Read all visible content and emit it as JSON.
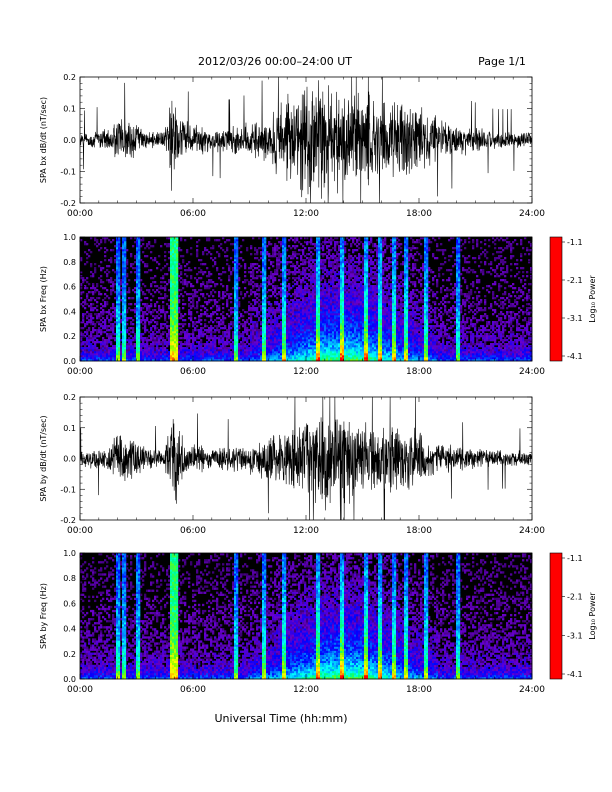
{
  "header": {
    "title": "2012/03/26  00:00–24:00 UT",
    "page": "Page 1/1"
  },
  "xlabel": "Universal Time (hh:mm)",
  "colorbar": {
    "label": "Log₁₀ Power",
    "tick_labels": [
      "-1.1",
      "-2.1",
      "-3.1",
      "-4.1"
    ],
    "colors": [
      "#ff0000",
      "#ffa500",
      "#ffff00",
      "#7cfc00",
      "#00ff80",
      "#00ffff",
      "#0080ff",
      "#0000ff",
      "#6a00cc",
      "#000000"
    ]
  },
  "chart_data": [
    {
      "type": "line",
      "ylabel": "SPA bx dB/dt (nT/sec)",
      "xlim": [
        0,
        24
      ],
      "ylim": [
        -0.2,
        0.2
      ],
      "x_tick_labels": [
        "00:00",
        "06:00",
        "12:00",
        "18:00",
        "24:00"
      ],
      "y_tick_labels": [
        "0.2",
        "0.1",
        "0.0",
        "-0.1",
        "-0.2"
      ],
      "envelope": {
        "hours": [
          0,
          1.5,
          2.2,
          3.5,
          4.5,
          4.9,
          5.5,
          7,
          9,
          10.5,
          12,
          13,
          14.5,
          16,
          17.5,
          19,
          20.5,
          22,
          24
        ],
        "amplitude": [
          0.025,
          0.04,
          0.09,
          0.03,
          0.03,
          0.2,
          0.07,
          0.04,
          0.06,
          0.12,
          0.2,
          0.2,
          0.18,
          0.15,
          0.14,
          0.08,
          0.05,
          0.03,
          0.03
        ]
      }
    },
    {
      "type": "heatmap",
      "ylabel": "SPA bx Freq (Hz)",
      "xlim": [
        0,
        24
      ],
      "ylim": [
        0,
        1
      ],
      "x_tick_labels": [
        "00:00",
        "06:00",
        "12:00",
        "18:00",
        "24:00"
      ],
      "y_tick_labels": [
        "1.0",
        "0.8",
        "0.6",
        "0.4",
        "0.2",
        "0.0"
      ],
      "zlim": [
        -4.1,
        -1.1
      ],
      "zlabel": "Log₁₀ Power"
    },
    {
      "type": "line",
      "ylabel": "SPA by dB/dt (nT/sec)",
      "xlim": [
        0,
        24
      ],
      "ylim": [
        -0.2,
        0.2
      ],
      "x_tick_labels": [
        "00:00",
        "06:00",
        "12:00",
        "18:00",
        "24:00"
      ],
      "y_tick_labels": [
        "0.2",
        "0.1",
        "0.0",
        "-0.1",
        "-0.2"
      ],
      "envelope": {
        "hours": [
          0,
          1.5,
          2.2,
          3.5,
          4.5,
          4.9,
          5.5,
          7,
          9,
          10.5,
          12,
          13,
          14.5,
          16,
          17.5,
          19,
          20.5,
          22,
          24
        ],
        "amplitude": [
          0.03,
          0.05,
          0.12,
          0.04,
          0.03,
          0.2,
          0.08,
          0.04,
          0.06,
          0.09,
          0.14,
          0.2,
          0.15,
          0.12,
          0.12,
          0.06,
          0.04,
          0.03,
          0.03
        ]
      }
    },
    {
      "type": "heatmap",
      "ylabel": "SPA by Freq (Hz)",
      "xlim": [
        0,
        24
      ],
      "ylim": [
        0,
        1
      ],
      "x_tick_labels": [
        "00:00",
        "06:00",
        "12:00",
        "18:00",
        "24:00"
      ],
      "y_tick_labels": [
        "1.0",
        "0.8",
        "0.6",
        "0.4",
        "0.2",
        "0.0"
      ],
      "zlim": [
        -4.1,
        -1.1
      ],
      "zlabel": "Log₁₀ Power"
    }
  ]
}
